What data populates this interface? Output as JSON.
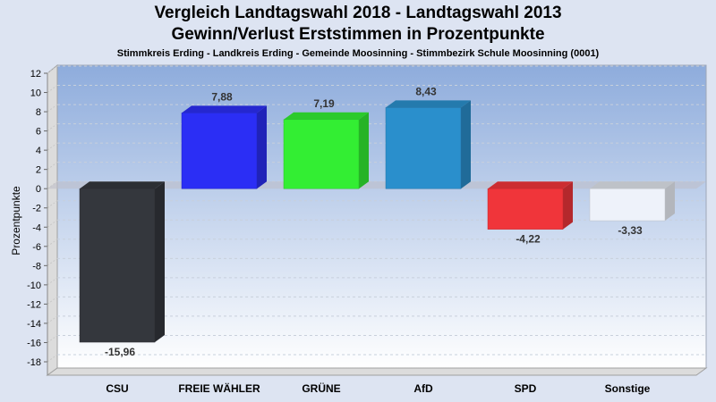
{
  "chart_data": {
    "type": "bar",
    "title": "Vergleich Landtagswahl 2018 - Landtagswahl 2013",
    "subtitle": "Gewinn/Verlust Erststimmen in Prozentpunkte",
    "subsubtitle": "Stimmkreis Erding - Landkreis Erding - Gemeinde Moosinning - Stimmbezirk Schule Moosinning (0001)",
    "xlabel": "",
    "ylabel": "Prozentpunkte",
    "ylim": [
      -18,
      12
    ],
    "yticks": [
      12,
      10,
      8,
      6,
      4,
      2,
      0,
      -2,
      -4,
      -6,
      -8,
      -10,
      -12,
      -14,
      -16,
      -18
    ],
    "grid": true,
    "categories": [
      "CSU",
      "FREIE WÄHLER",
      "GRÜNE",
      "AfD",
      "SPD",
      "Sonstige"
    ],
    "values": [
      -15.96,
      7.88,
      7.19,
      8.43,
      -4.22,
      -3.33
    ],
    "labels": [
      "-15,96",
      "7,88",
      "7,19",
      "8,43",
      "-4,22",
      "-3,33"
    ],
    "colors": [
      "#34373d",
      "#2b2ef5",
      "#33ee33",
      "#2a8fcc",
      "#f0353a",
      "#eef2fa"
    ]
  }
}
